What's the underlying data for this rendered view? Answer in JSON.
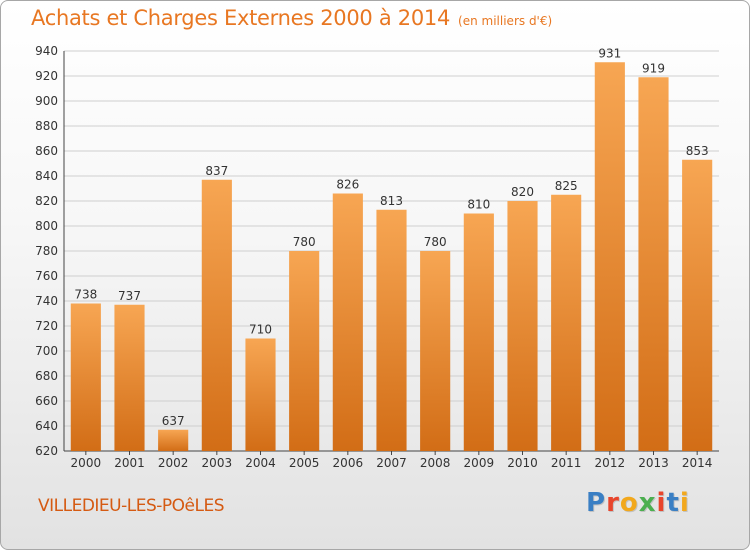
{
  "header": {
    "title": "Achats et Charges Externes 2000 à 2014",
    "unit": "(en milliers d'€)"
  },
  "footer": {
    "city": "VILLEDIEU-LES-POêLES",
    "brand_letters": [
      "P",
      "r",
      "o",
      "x",
      "i",
      "t",
      "i"
    ],
    "brand_colors": [
      "#3a7fc4",
      "#e8452c",
      "#f2a81d",
      "#4caf50",
      "#e8452c",
      "#3a7fc4",
      "#f2a81d"
    ]
  },
  "chart_data": {
    "type": "bar",
    "categories": [
      "2000",
      "2001",
      "2002",
      "2003",
      "2004",
      "2005",
      "2006",
      "2007",
      "2008",
      "2009",
      "2010",
      "2011",
      "2012",
      "2013",
      "2014"
    ],
    "values": [
      738,
      737,
      637,
      837,
      710,
      780,
      826,
      813,
      780,
      810,
      820,
      825,
      931,
      919,
      853
    ],
    "ylim": [
      620,
      940
    ],
    "yticks": [
      620,
      640,
      660,
      680,
      700,
      720,
      740,
      760,
      780,
      800,
      820,
      840,
      860,
      880,
      900,
      920,
      940
    ],
    "grid": true,
    "colors": {
      "bar_top": "#f7a653",
      "bar_bottom": "#d26d16",
      "grid": "#cfcfcf"
    }
  }
}
